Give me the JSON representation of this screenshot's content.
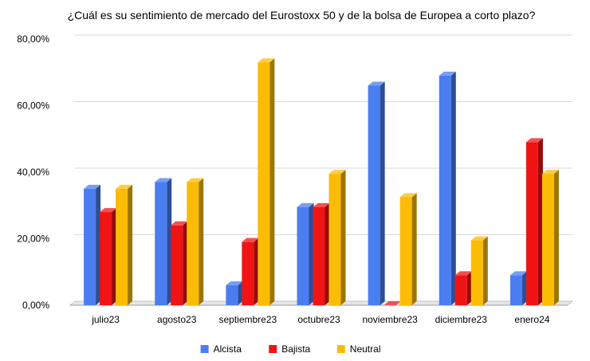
{
  "chart_data": {
    "type": "bar",
    "title": "¿Cuál es su sentimiento de mercado del Eurostoxx 50 y de la bolsa de Europea a corto plazo?",
    "xlabel": "",
    "ylabel": "",
    "categories": [
      "julio23",
      "agosto23",
      "septiembre23",
      "octubre23",
      "noviembre23",
      "diciembre23",
      "enero24"
    ],
    "series": [
      {
        "name": "Alcista",
        "color": "#4a7ef0",
        "values": [
          35,
          37,
          6,
          29.5,
          66,
          69,
          9
        ]
      },
      {
        "name": "Bajista",
        "color": "#f01414",
        "values": [
          28,
          24,
          19,
          29.5,
          0,
          9,
          49
        ]
      },
      {
        "name": "Neutral",
        "color": "#fbbc05",
        "values": [
          35,
          37,
          73,
          39.5,
          32.5,
          19.5,
          39.5
        ]
      }
    ],
    "ylim": [
      0,
      80
    ],
    "yticks": [
      {
        "value": 0,
        "label": "0,00%"
      },
      {
        "value": 20,
        "label": "20,00%"
      },
      {
        "value": 40,
        "label": "40,00%"
      },
      {
        "value": 60,
        "label": "60,00%"
      },
      {
        "value": 80,
        "label": "80,00%"
      }
    ],
    "grid": true,
    "legend_position": "bottom",
    "style": "3d-bars"
  }
}
